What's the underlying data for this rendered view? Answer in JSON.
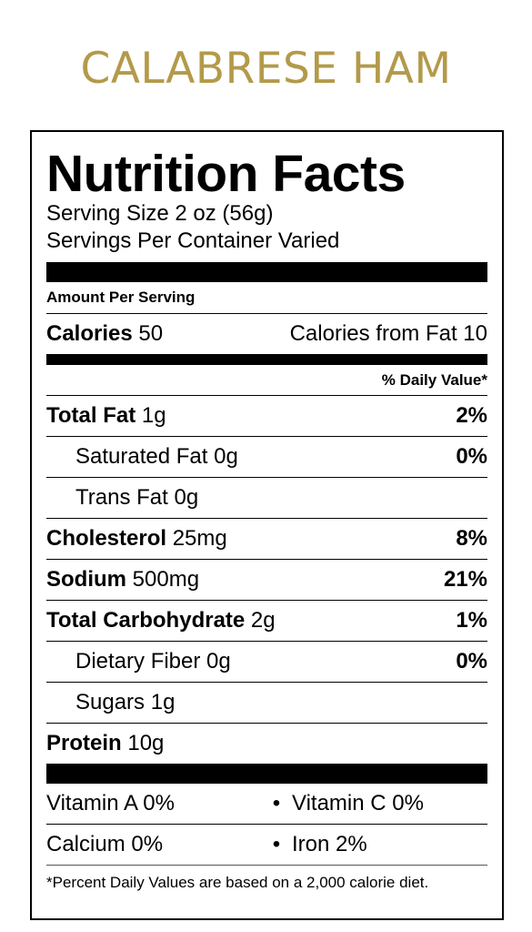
{
  "product_title": "CALABRESE HAM",
  "nutrition": {
    "title": "Nutrition Facts",
    "serving_size": "Serving Size 2 oz (56g)",
    "servings_per_container": "Servings Per Container Varied",
    "amount_per_serving": "Amount Per Serving",
    "calories_label": "Calories",
    "calories_value": "50",
    "calories_from_fat": "Calories from Fat 10",
    "daily_value_header": "% Daily Value*",
    "rows": [
      {
        "label": "Total Fat",
        "amount": "1g",
        "dv": "2%",
        "bold": true,
        "indent": false
      },
      {
        "label": "Saturated Fat",
        "amount": "0g",
        "dv": "0%",
        "bold": false,
        "indent": true
      },
      {
        "label": "Trans Fat",
        "amount": "0g",
        "dv": "",
        "bold": false,
        "indent": true
      },
      {
        "label": "Cholesterol",
        "amount": "25mg",
        "dv": "8%",
        "bold": true,
        "indent": false
      },
      {
        "label": "Sodium",
        "amount": "500mg",
        "dv": "21%",
        "bold": true,
        "indent": false
      },
      {
        "label": "Total Carbohydrate",
        "amount": "2g",
        "dv": "1%",
        "bold": true,
        "indent": false
      },
      {
        "label": "Dietary Fiber",
        "amount": "0g",
        "dv": "0%",
        "bold": false,
        "indent": true
      },
      {
        "label": "Sugars",
        "amount": "1g",
        "dv": "",
        "bold": false,
        "indent": true
      },
      {
        "label": "Protein",
        "amount": "10g",
        "dv": "",
        "bold": true,
        "indent": false
      }
    ],
    "vitamins": [
      {
        "left": "Vitamin A 0%",
        "right": "Vitamin C 0%"
      },
      {
        "left": "Calcium 0%",
        "right": "Iron 2%"
      }
    ],
    "bullet": "•",
    "footnote": "*Percent Daily Values are based on a 2,000 calorie diet."
  }
}
